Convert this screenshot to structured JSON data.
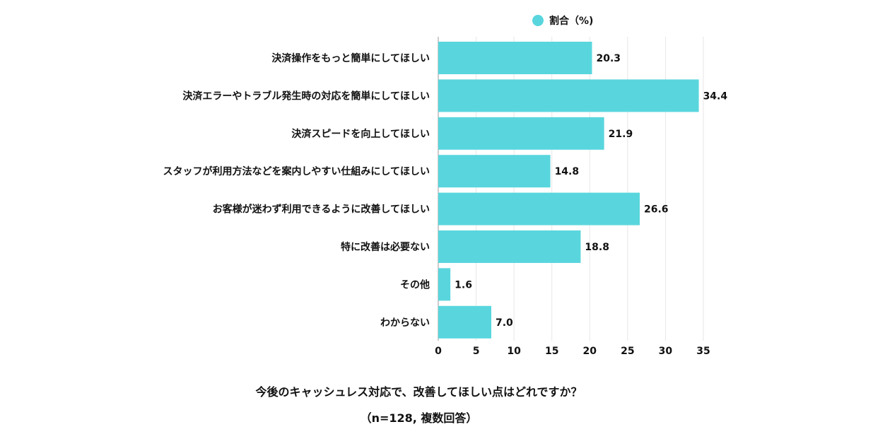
{
  "legend": {
    "label": "割合（%)",
    "color": "#59d6dd"
  },
  "caption": {
    "title": "今後のキャッシュレス対応で、改善してほしい点はどれですか？",
    "note": "（n=128, 複数回答）"
  },
  "chart_data": {
    "type": "bar",
    "orientation": "horizontal",
    "categories": [
      "決済操作をもっと簡単にしてほしい",
      "決済エラーやトラブル発生時の対応を簡単にしてほしい",
      "決済スピードを向上してほしい",
      "スタッフが利用方法などを案内しやすい仕組みにしてほしい",
      "お客様が迷わず利用できるように改善してほしい",
      "特に改善は必要ない",
      "その他",
      "わからない"
    ],
    "series": [
      {
        "name": "割合（%)",
        "values": [
          20.3,
          34.4,
          21.9,
          14.8,
          26.6,
          18.8,
          1.6,
          7.0
        ],
        "labels": [
          "20.3",
          "34.4",
          "21.9",
          "14.8",
          "26.6",
          "18.8",
          "1.6",
          "7.0"
        ]
      }
    ],
    "xlim": [
      0,
      35
    ],
    "xticks": [
      0,
      5,
      10,
      15,
      20,
      25,
      30,
      35
    ],
    "grid": true,
    "legend_position": "top"
  }
}
